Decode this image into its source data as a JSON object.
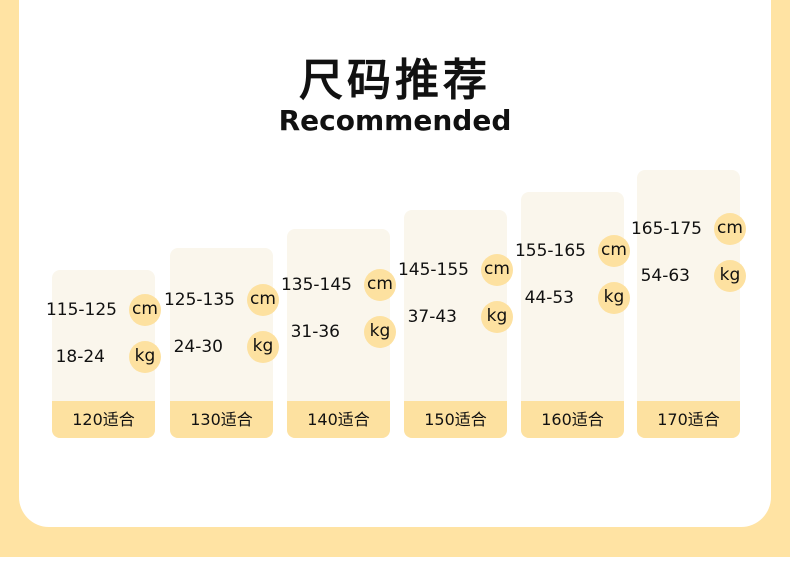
{
  "header": {
    "title": "尺码推荐",
    "subtitle": "Recommended"
  },
  "cards": [
    {
      "size": "120适合",
      "height": "115-125",
      "height_unit": "cm",
      "weight": "18-24",
      "weight_unit": "kg"
    },
    {
      "size": "130适合",
      "height": "125-135",
      "height_unit": "cm",
      "weight": "24-30",
      "weight_unit": "kg"
    },
    {
      "size": "140适合",
      "height": "135-145",
      "height_unit": "cm",
      "weight": "31-36",
      "weight_unit": "kg"
    },
    {
      "size": "150适合",
      "height": "145-155",
      "height_unit": "cm",
      "weight": "37-43",
      "weight_unit": "kg"
    },
    {
      "size": "160适合",
      "height": "155-165",
      "height_unit": "cm",
      "weight": "44-53",
      "weight_unit": "kg"
    },
    {
      "size": "170适合",
      "height": "165-175",
      "height_unit": "cm",
      "weight": "54-63",
      "weight_unit": "kg"
    }
  ],
  "colors": {
    "background": "#FFE3A3",
    "card": "#FAF6EC",
    "accent": "#FDE1A0"
  }
}
